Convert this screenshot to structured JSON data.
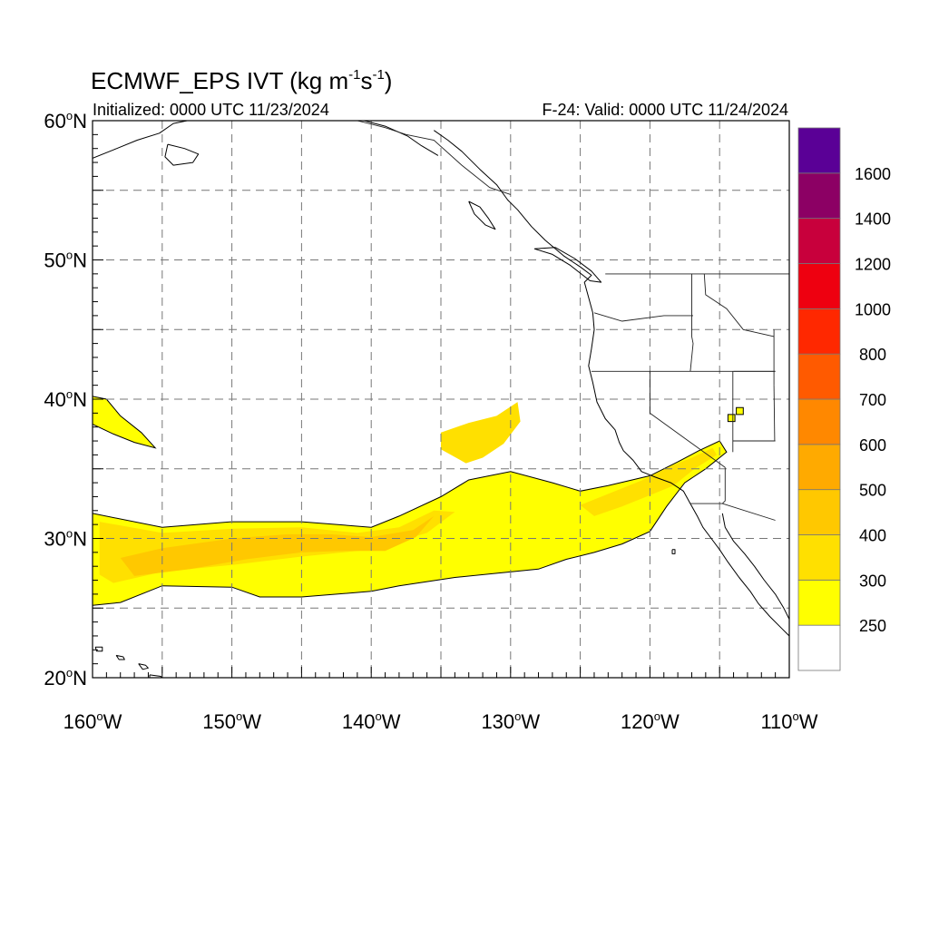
{
  "title": {
    "main": "ECMWF_EPS IVT (kg m",
    "exp1": "-1",
    "mid": "s",
    "exp2": "-1",
    "close": ")"
  },
  "subtitle": {
    "left": "Initialized: 0000 UTC 11/23/2024",
    "right": "F-24: Valid: 0000 UTC 11/24/2024"
  },
  "map": {
    "lon_range": [
      -160,
      -110
    ],
    "lat_range": [
      20,
      60
    ],
    "grid": true,
    "grid_step_deg": 5,
    "lat_labels": [
      {
        "deg": "60",
        "hemi": "N",
        "value": 60
      },
      {
        "deg": "50",
        "hemi": "N",
        "value": 50
      },
      {
        "deg": "40",
        "hemi": "N",
        "value": 40
      },
      {
        "deg": "30",
        "hemi": "N",
        "value": 30
      },
      {
        "deg": "20",
        "hemi": "N",
        "value": 20
      }
    ],
    "lon_labels": [
      {
        "deg": "160",
        "hemi": "W",
        "value": -160
      },
      {
        "deg": "150",
        "hemi": "W",
        "value": -150
      },
      {
        "deg": "140",
        "hemi": "W",
        "value": -140
      },
      {
        "deg": "130",
        "hemi": "W",
        "value": -130
      },
      {
        "deg": "120",
        "hemi": "W",
        "value": -120
      },
      {
        "deg": "110",
        "hemi": "W",
        "value": -110
      }
    ],
    "degree_symbol": "o"
  },
  "colorbar": {
    "labels": [
      "250",
      "300",
      "400",
      "500",
      "600",
      "700",
      "800",
      "1000",
      "1200",
      "1400",
      "1600"
    ],
    "colors": [
      "#ffffff",
      "#ffff00",
      "#ffe000",
      "#ffc800",
      "#ffaa00",
      "#ff8800",
      "#ff5a00",
      "#ff2800",
      "#ee0010",
      "#c8003c",
      "#8c0064",
      "#5a0096"
    ]
  },
  "ivt_regions": [
    {
      "name": "main-river",
      "level": 1,
      "color": "#ffff00",
      "points": [
        [
          -160,
          31.8
        ],
        [
          -155,
          30.8
        ],
        [
          -150,
          31.2
        ],
        [
          -145,
          31.2
        ],
        [
          -140,
          30.8
        ],
        [
          -138,
          31.6
        ],
        [
          -135,
          33.0
        ],
        [
          -133,
          34.2
        ],
        [
          -130,
          34.8
        ],
        [
          -127,
          34.0
        ],
        [
          -125,
          33.4
        ],
        [
          -123,
          33.8
        ],
        [
          -120,
          34.5
        ],
        [
          -118,
          35.5
        ],
        [
          -116.5,
          36.3
        ],
        [
          -115,
          37.0
        ],
        [
          -114.5,
          36.2
        ],
        [
          -116,
          35.0
        ],
        [
          -117.5,
          34.0
        ],
        [
          -118.8,
          32.3
        ],
        [
          -120,
          30.5
        ],
        [
          -122,
          29.6
        ],
        [
          -124,
          29.0
        ],
        [
          -126,
          28.5
        ],
        [
          -128,
          27.8
        ],
        [
          -131,
          27.5
        ],
        [
          -134,
          27.2
        ],
        [
          -138,
          26.6
        ],
        [
          -140,
          26.2
        ],
        [
          -145,
          25.8
        ],
        [
          -148,
          25.8
        ],
        [
          -150,
          26.5
        ],
        [
          -155,
          26.6
        ],
        [
          -158,
          25.4
        ],
        [
          -160,
          25.2
        ]
      ]
    },
    {
      "name": "main-core",
      "level": 2,
      "color": "#ffe000",
      "points": [
        [
          -159.5,
          31.2
        ],
        [
          -155,
          30.4
        ],
        [
          -150,
          30.7
        ],
        [
          -145,
          30.8
        ],
        [
          -141,
          30.4
        ],
        [
          -138,
          30.8
        ],
        [
          -135.5,
          32.0
        ],
        [
          -134,
          31.9
        ],
        [
          -136,
          30.4
        ],
        [
          -140,
          29.2
        ],
        [
          -145,
          28.7
        ],
        [
          -150,
          28.1
        ],
        [
          -155,
          27.6
        ],
        [
          -158.5,
          26.8
        ],
        [
          -159.5,
          27.4
        ]
      ]
    },
    {
      "name": "main-inner",
      "level": 3,
      "color": "#ffc800",
      "points": [
        [
          -158,
          28.6
        ],
        [
          -155,
          29.3
        ],
        [
          -150,
          30.0
        ],
        [
          -146,
          30.3
        ],
        [
          -143,
          30.3
        ],
        [
          -140,
          30.1
        ],
        [
          -137,
          30.6
        ],
        [
          -135.5,
          31.6
        ],
        [
          -136.8,
          30.1
        ],
        [
          -139,
          29.1
        ],
        [
          -142,
          29.1
        ],
        [
          -145,
          29.0
        ],
        [
          -149,
          28.5
        ],
        [
          -153,
          27.8
        ],
        [
          -157,
          27.3
        ]
      ]
    },
    {
      "name": "south-coast",
      "level": 2,
      "color": "#ffe000",
      "points": [
        [
          -120.5,
          34.2
        ],
        [
          -118.5,
          35.2
        ],
        [
          -117,
          35.8
        ],
        [
          -115.5,
          36.5
        ],
        [
          -115.2,
          36.0
        ],
        [
          -116.8,
          35.0
        ],
        [
          -118.3,
          33.8
        ],
        [
          -120,
          33.1
        ],
        [
          -122,
          32.3
        ],
        [
          -124,
          31.6
        ],
        [
          -125,
          32.4
        ]
      ]
    },
    {
      "name": "pacific-blob",
      "level": 2,
      "color": "#ffe000",
      "points": [
        [
          -135,
          37.6
        ],
        [
          -133,
          38.3
        ],
        [
          -131,
          38.8
        ],
        [
          -129.5,
          39.8
        ],
        [
          -129.3,
          38.4
        ],
        [
          -130.5,
          36.8
        ],
        [
          -132,
          35.8
        ],
        [
          -133.2,
          35.4
        ],
        [
          -135,
          36.4
        ]
      ]
    },
    {
      "name": "nw-patch",
      "level": 1,
      "color": "#ffff00",
      "points": [
        [
          -160,
          40.2
        ],
        [
          -159,
          40.0
        ],
        [
          -158,
          38.8
        ],
        [
          -156.5,
          37.6
        ],
        [
          -155.5,
          36.5
        ],
        [
          -157,
          36.9
        ],
        [
          -158.5,
          37.5
        ],
        [
          -160,
          38.2
        ]
      ]
    },
    {
      "name": "utah-cell-a",
      "level": 1,
      "color": "#ffff00",
      "points": [
        [
          -113.8,
          39.4
        ],
        [
          -113.3,
          39.4
        ],
        [
          -113.3,
          38.9
        ],
        [
          -113.8,
          38.9
        ]
      ]
    },
    {
      "name": "utah-cell-b",
      "level": 1,
      "color": "#ffff00",
      "points": [
        [
          -114.4,
          38.9
        ],
        [
          -113.9,
          38.9
        ],
        [
          -113.9,
          38.4
        ],
        [
          -114.4,
          38.4
        ]
      ]
    }
  ],
  "coastlines": [
    {
      "name": "north-american-west-coast",
      "points": [
        [
          -135.5,
          59.3
        ],
        [
          -134.5,
          58.6
        ],
        [
          -133.5,
          57.8
        ],
        [
          -132.2,
          56.5
        ],
        [
          -131,
          55.4
        ],
        [
          -130.2,
          54.3
        ],
        [
          -129.5,
          53.6
        ],
        [
          -128.5,
          52.4
        ],
        [
          -127.5,
          51.4
        ],
        [
          -126.2,
          50.3
        ],
        [
          -125,
          49.5
        ],
        [
          -124.2,
          48.9
        ],
        [
          -124.7,
          48.4
        ],
        [
          -124.4,
          47.3
        ],
        [
          -124.1,
          46.2
        ],
        [
          -124,
          45.0
        ],
        [
          -124.2,
          43.6
        ],
        [
          -124.4,
          42.4
        ],
        [
          -124.1,
          41.2
        ],
        [
          -123.8,
          39.8
        ],
        [
          -123.2,
          38.6
        ],
        [
          -122.5,
          37.8
        ],
        [
          -122.2,
          36.9
        ],
        [
          -121.9,
          36.3
        ],
        [
          -121.2,
          35.6
        ],
        [
          -120.6,
          34.8
        ],
        [
          -119.6,
          34.4
        ],
        [
          -118.5,
          34.0
        ],
        [
          -117.6,
          33.4
        ],
        [
          -117.1,
          32.5
        ],
        [
          -116.6,
          31.6
        ],
        [
          -116.2,
          30.8
        ],
        [
          -115.6,
          30.0
        ],
        [
          -115.0,
          29.2
        ],
        [
          -114.4,
          28.3
        ],
        [
          -113.6,
          27.2
        ],
        [
          -112.8,
          26.2
        ],
        [
          -112.2,
          25.3
        ],
        [
          -111.4,
          24.4
        ],
        [
          -110.5,
          23.5
        ],
        [
          -110,
          23
        ]
      ]
    },
    {
      "name": "gulf-of-california",
      "points": [
        [
          -114.8,
          31.8
        ],
        [
          -114.6,
          30.8
        ],
        [
          -114.0,
          29.8
        ],
        [
          -113.2,
          28.9
        ],
        [
          -112.5,
          28.0
        ],
        [
          -111.8,
          27.0
        ],
        [
          -111.0,
          26.0
        ],
        [
          -110.4,
          25.0
        ],
        [
          -110.0,
          24.2
        ]
      ]
    },
    {
      "name": "alaska-gulf-coast",
      "points": [
        [
          -160,
          57.3
        ],
        [
          -158.5,
          57.9
        ],
        [
          -156.8,
          58.6
        ],
        [
          -155.2,
          59.1
        ],
        [
          -154.2,
          59.8
        ],
        [
          -153.2,
          60
        ]
      ]
    },
    {
      "name": "southeast-alaska-coast",
      "points": [
        [
          -140.5,
          60
        ],
        [
          -139,
          59.6
        ],
        [
          -137.4,
          58.9
        ],
        [
          -136.4,
          58.2
        ],
        [
          -135.2,
          57.5
        ]
      ]
    },
    {
      "name": "kodiak-island",
      "points": [
        [
          -154.6,
          58.3
        ],
        [
          -153.4,
          58.0
        ],
        [
          -152.4,
          57.6
        ],
        [
          -152.8,
          57.0
        ],
        [
          -154.2,
          56.8
        ],
        [
          -154.8,
          57.4
        ],
        [
          -154.6,
          58.3
        ]
      ]
    },
    {
      "name": "vancouver-island",
      "points": [
        [
          -128.3,
          50.8
        ],
        [
          -127.0,
          50.4
        ],
        [
          -125.7,
          49.6
        ],
        [
          -124.3,
          48.5
        ],
        [
          -123.5,
          48.4
        ],
        [
          -124.2,
          49.2
        ],
        [
          -125.4,
          50.1
        ],
        [
          -126.8,
          50.9
        ],
        [
          -128.3,
          50.8
        ]
      ]
    },
    {
      "name": "haida-gwaii",
      "points": [
        [
          -133.0,
          54.2
        ],
        [
          -132.2,
          53.8
        ],
        [
          -131.6,
          53.0
        ],
        [
          -131.1,
          52.2
        ],
        [
          -131.8,
          52.5
        ],
        [
          -132.6,
          53.3
        ],
        [
          -133.0,
          54.2
        ]
      ]
    },
    {
      "name": "hawaii-island",
      "points": [
        [
          -155.9,
          20.2
        ],
        [
          -155.1,
          20.1
        ],
        [
          -154.8,
          19.6
        ],
        [
          -155.3,
          19.1
        ],
        [
          -155.9,
          19.5
        ],
        [
          -155.9,
          20.2
        ]
      ]
    },
    {
      "name": "maui",
      "points": [
        [
          -156.7,
          21.0
        ],
        [
          -156.2,
          20.9
        ],
        [
          -156.0,
          20.7
        ],
        [
          -156.4,
          20.6
        ],
        [
          -156.7,
          21.0
        ]
      ]
    },
    {
      "name": "oahu",
      "points": [
        [
          -158.3,
          21.6
        ],
        [
          -157.8,
          21.5
        ],
        [
          -157.7,
          21.3
        ],
        [
          -158.1,
          21.3
        ],
        [
          -158.3,
          21.6
        ]
      ]
    },
    {
      "name": "kauai",
      "points": [
        [
          -159.8,
          22.2
        ],
        [
          -159.3,
          22.2
        ],
        [
          -159.3,
          21.9
        ],
        [
          -159.7,
          21.9
        ],
        [
          -159.8,
          22.2
        ]
      ]
    },
    {
      "name": "guadalupe-island",
      "points": [
        [
          -118.4,
          29.2
        ],
        [
          -118.2,
          29.2
        ],
        [
          -118.2,
          28.9
        ],
        [
          -118.4,
          28.9
        ],
        [
          -118.4,
          29.2
        ]
      ]
    }
  ],
  "political_borders": [
    {
      "name": "canada-us-border",
      "points": [
        [
          -123.2,
          49
        ],
        [
          -110,
          49
        ]
      ]
    },
    {
      "name": "alaska-canada-border",
      "points": [
        [
          -141,
          60
        ],
        [
          -139,
          59.5
        ],
        [
          -137.5,
          59.0
        ],
        [
          -135.5,
          58.6
        ],
        [
          -133.5,
          56.8
        ],
        [
          -131.5,
          55.2
        ],
        [
          -130,
          54.7
        ]
      ]
    },
    {
      "name": "wa-or-border",
      "points": [
        [
          -124,
          46.2
        ],
        [
          -122,
          45.6
        ],
        [
          -119,
          46.0
        ],
        [
          -116.9,
          46.0
        ]
      ]
    },
    {
      "name": "or-ca-nv-border",
      "points": [
        [
          -124.2,
          42
        ],
        [
          -111,
          42
        ]
      ]
    },
    {
      "name": "idaho-west-border",
      "points": [
        [
          -117,
          49
        ],
        [
          -117,
          44.5
        ],
        [
          -116.9,
          44
        ],
        [
          -117.1,
          42
        ]
      ]
    },
    {
      "name": "idaho-montana-border",
      "points": [
        [
          -116.1,
          49
        ],
        [
          -116,
          47.5
        ],
        [
          -114.5,
          46.5
        ],
        [
          -113.3,
          45.0
        ],
        [
          -111.1,
          44.5
        ]
      ]
    },
    {
      "name": "idaho-utah-border",
      "points": [
        [
          -114,
          42
        ],
        [
          -111,
          42
        ]
      ]
    },
    {
      "name": "wyoming-west-border",
      "points": [
        [
          -111.1,
          45
        ],
        [
          -111.1,
          41
        ]
      ]
    },
    {
      "name": "utah-east-border",
      "points": [
        [
          -111.1,
          41
        ],
        [
          -111.05,
          37
        ]
      ]
    },
    {
      "name": "ca-nv-border",
      "points": [
        [
          -120,
          42
        ],
        [
          -120,
          39
        ],
        [
          -114.6,
          35.1
        ]
      ]
    },
    {
      "name": "nv-ut-border",
      "points": [
        [
          -114.05,
          42
        ],
        [
          -114.05,
          36.2
        ]
      ]
    },
    {
      "name": "az-border",
      "points": [
        [
          -114.6,
          35.1
        ],
        [
          -114.6,
          32.7
        ],
        [
          -114.8,
          32.5
        ],
        [
          -111,
          31.3
        ]
      ]
    },
    {
      "name": "az-ut-border",
      "points": [
        [
          -114.05,
          37
        ],
        [
          -111,
          37
        ]
      ]
    },
    {
      "name": "us-mexico-border",
      "points": [
        [
          -117.1,
          32.5
        ],
        [
          -114.8,
          32.5
        ]
      ]
    }
  ]
}
